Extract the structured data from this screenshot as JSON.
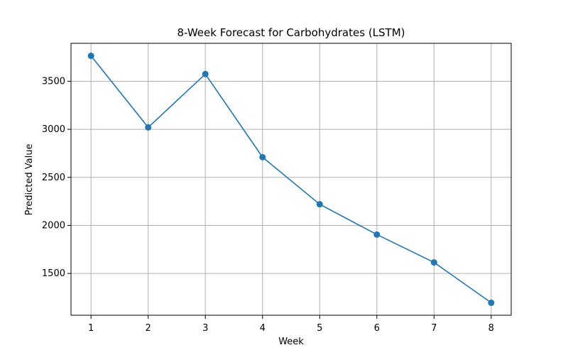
{
  "chart_data": {
    "type": "line",
    "title": "8-Week Forecast for Carbohydrates (LSTM)",
    "xlabel": "Week",
    "ylabel": "Predicted Value",
    "x": [
      1,
      2,
      3,
      4,
      5,
      6,
      7,
      8
    ],
    "series": [
      {
        "values": [
          3765,
          3020,
          3575,
          2710,
          2220,
          1905,
          1615,
          1195
        ],
        "color": "#1f77b4",
        "marker": "circle"
      }
    ],
    "x_ticks": [
      "1",
      "2",
      "3",
      "4",
      "5",
      "6",
      "7",
      "8"
    ],
    "y_ticks": [
      "1500",
      "2000",
      "2500",
      "3000",
      "3500"
    ],
    "xlim": [
      0.65,
      8.35
    ],
    "ylim": [
      1065,
      3895
    ],
    "grid": true
  }
}
